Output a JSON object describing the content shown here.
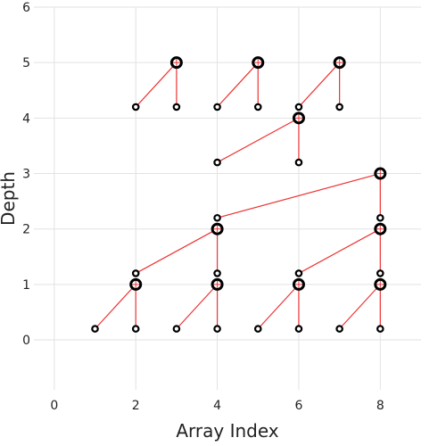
{
  "chart_data": {
    "type": "scatter",
    "title": "",
    "xlabel": "Array Index",
    "ylabel": "Depth",
    "xlim": [
      -0.5,
      9.0
    ],
    "ylim": [
      -0.9,
      6.0
    ],
    "x_ticks": [
      0,
      2,
      4,
      6,
      8
    ],
    "y_ticks": [
      0,
      1,
      2,
      3,
      4,
      5,
      6
    ],
    "grid": true,
    "legend": "none",
    "colors": {
      "edge": "#ee3333",
      "node": "#000000",
      "grid": "#e2e2e2",
      "cross": "#ee3333"
    },
    "nodes": [
      {
        "x": 3,
        "y": 5,
        "size": "large"
      },
      {
        "x": 5,
        "y": 5,
        "size": "large"
      },
      {
        "x": 7,
        "y": 5,
        "size": "large"
      },
      {
        "x": 2,
        "y": 4.2,
        "size": "small"
      },
      {
        "x": 3,
        "y": 4.2,
        "size": "small"
      },
      {
        "x": 4,
        "y": 4.2,
        "size": "small"
      },
      {
        "x": 5,
        "y": 4.2,
        "size": "small"
      },
      {
        "x": 6,
        "y": 4.2,
        "size": "small"
      },
      {
        "x": 7,
        "y": 4.2,
        "size": "small"
      },
      {
        "x": 6,
        "y": 4,
        "size": "large"
      },
      {
        "x": 4,
        "y": 3.2,
        "size": "small"
      },
      {
        "x": 6,
        "y": 3.2,
        "size": "small"
      },
      {
        "x": 8,
        "y": 3,
        "size": "large"
      },
      {
        "x": 4,
        "y": 2.2,
        "size": "small"
      },
      {
        "x": 8,
        "y": 2.2,
        "size": "small"
      },
      {
        "x": 4,
        "y": 2,
        "size": "large"
      },
      {
        "x": 8,
        "y": 2,
        "size": "large"
      },
      {
        "x": 2,
        "y": 1.2,
        "size": "small"
      },
      {
        "x": 4,
        "y": 1.2,
        "size": "small"
      },
      {
        "x": 6,
        "y": 1.2,
        "size": "small"
      },
      {
        "x": 8,
        "y": 1.2,
        "size": "small"
      },
      {
        "x": 2,
        "y": 1,
        "size": "large"
      },
      {
        "x": 4,
        "y": 1,
        "size": "large"
      },
      {
        "x": 6,
        "y": 1,
        "size": "large"
      },
      {
        "x": 8,
        "y": 1,
        "size": "large"
      },
      {
        "x": 1,
        "y": 0.2,
        "size": "small"
      },
      {
        "x": 2,
        "y": 0.2,
        "size": "small"
      },
      {
        "x": 3,
        "y": 0.2,
        "size": "small"
      },
      {
        "x": 4,
        "y": 0.2,
        "size": "small"
      },
      {
        "x": 5,
        "y": 0.2,
        "size": "small"
      },
      {
        "x": 6,
        "y": 0.2,
        "size": "small"
      },
      {
        "x": 7,
        "y": 0.2,
        "size": "small"
      },
      {
        "x": 8,
        "y": 0.2,
        "size": "small"
      }
    ],
    "edges": [
      {
        "from": [
          3,
          5
        ],
        "to": [
          2,
          4.2
        ]
      },
      {
        "from": [
          3,
          5
        ],
        "to": [
          3,
          4.2
        ]
      },
      {
        "from": [
          5,
          5
        ],
        "to": [
          4,
          4.2
        ]
      },
      {
        "from": [
          5,
          5
        ],
        "to": [
          5,
          4.2
        ]
      },
      {
        "from": [
          7,
          5
        ],
        "to": [
          6,
          4.2
        ]
      },
      {
        "from": [
          7,
          5
        ],
        "to": [
          7,
          4.2
        ]
      },
      {
        "from": [
          6,
          4
        ],
        "to": [
          4,
          3.2
        ]
      },
      {
        "from": [
          6,
          4
        ],
        "to": [
          6,
          3.2
        ]
      },
      {
        "from": [
          8,
          3
        ],
        "to": [
          4,
          2.2
        ]
      },
      {
        "from": [
          8,
          3
        ],
        "to": [
          8,
          2.2
        ]
      },
      {
        "from": [
          4,
          2
        ],
        "to": [
          2,
          1.2
        ]
      },
      {
        "from": [
          4,
          2
        ],
        "to": [
          4,
          1.2
        ]
      },
      {
        "from": [
          8,
          2
        ],
        "to": [
          6,
          1.2
        ]
      },
      {
        "from": [
          8,
          2
        ],
        "to": [
          8,
          1.2
        ]
      },
      {
        "from": [
          2,
          1
        ],
        "to": [
          1,
          0.2
        ]
      },
      {
        "from": [
          2,
          1
        ],
        "to": [
          2,
          0.2
        ]
      },
      {
        "from": [
          4,
          1
        ],
        "to": [
          3,
          0.2
        ]
      },
      {
        "from": [
          4,
          1
        ],
        "to": [
          4,
          0.2
        ]
      },
      {
        "from": [
          6,
          1
        ],
        "to": [
          5,
          0.2
        ]
      },
      {
        "from": [
          6,
          1
        ],
        "to": [
          6,
          0.2
        ]
      },
      {
        "from": [
          8,
          1
        ],
        "to": [
          7,
          0.2
        ]
      },
      {
        "from": [
          8,
          1
        ],
        "to": [
          8,
          0.2
        ]
      }
    ]
  }
}
